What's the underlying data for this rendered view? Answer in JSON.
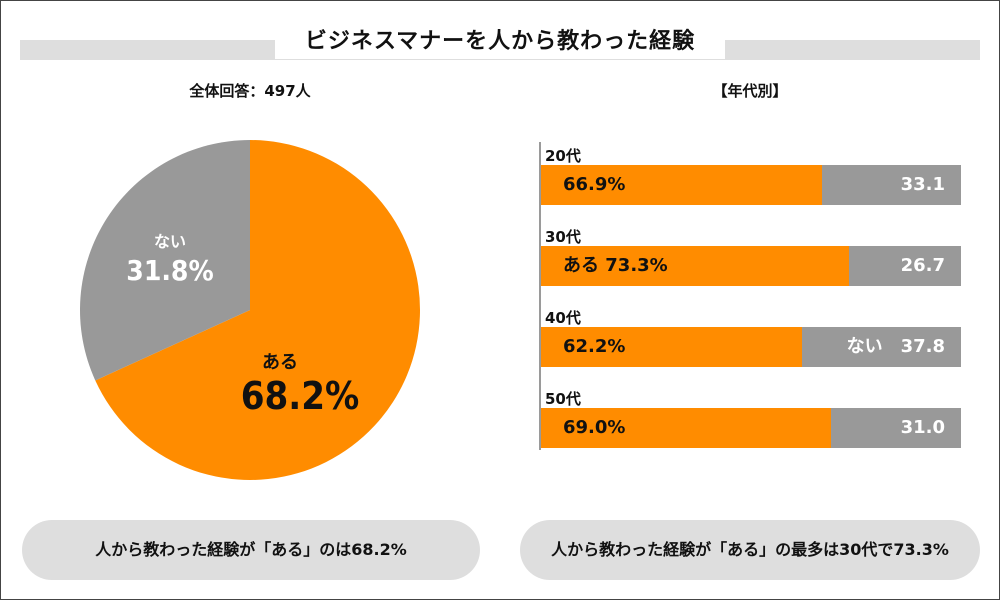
{
  "title": "ビジネスマナーを人から教わった経験",
  "pie_subtitle": "全体回答：497人",
  "bar_subtitle": "【年代別】",
  "colors": {
    "aru": "#FF8C00",
    "nai": "#999999"
  },
  "chart_data": [
    {
      "type": "pie",
      "subtitle": "全体回答：497人",
      "slices": [
        {
          "label": "ある",
          "value": 68.2,
          "display": "68.2%",
          "color": "#FF8C00"
        },
        {
          "label": "ない",
          "value": 31.8,
          "display": "31.8%",
          "color": "#999999"
        }
      ],
      "start_angle_deg": 0,
      "direction": "clockwise"
    },
    {
      "type": "bar",
      "orientation": "horizontal",
      "stacked": true,
      "subtitle": "【年代別】",
      "categories": [
        "20代",
        "30代",
        "40代",
        "50代"
      ],
      "series": [
        {
          "name": "ある",
          "values": [
            66.9,
            73.3,
            62.2,
            69.0
          ],
          "color": "#FF8C00"
        },
        {
          "name": "ない",
          "values": [
            33.1,
            26.7,
            37.8,
            31.0
          ],
          "color": "#999999"
        }
      ],
      "data_labels": {
        "aru": [
          "66.9%",
          "ある 73.3%",
          "62.2%",
          "69.0%"
        ],
        "nai": [
          "33.1",
          "26.7",
          "ない　37.8",
          "31.0"
        ]
      },
      "xlim": [
        0,
        100
      ]
    }
  ],
  "summary": {
    "left": "人から教わった経験が「ある」のは68.2%",
    "right": "人から教わった経験が「ある」の最多は30代で73.3%"
  }
}
